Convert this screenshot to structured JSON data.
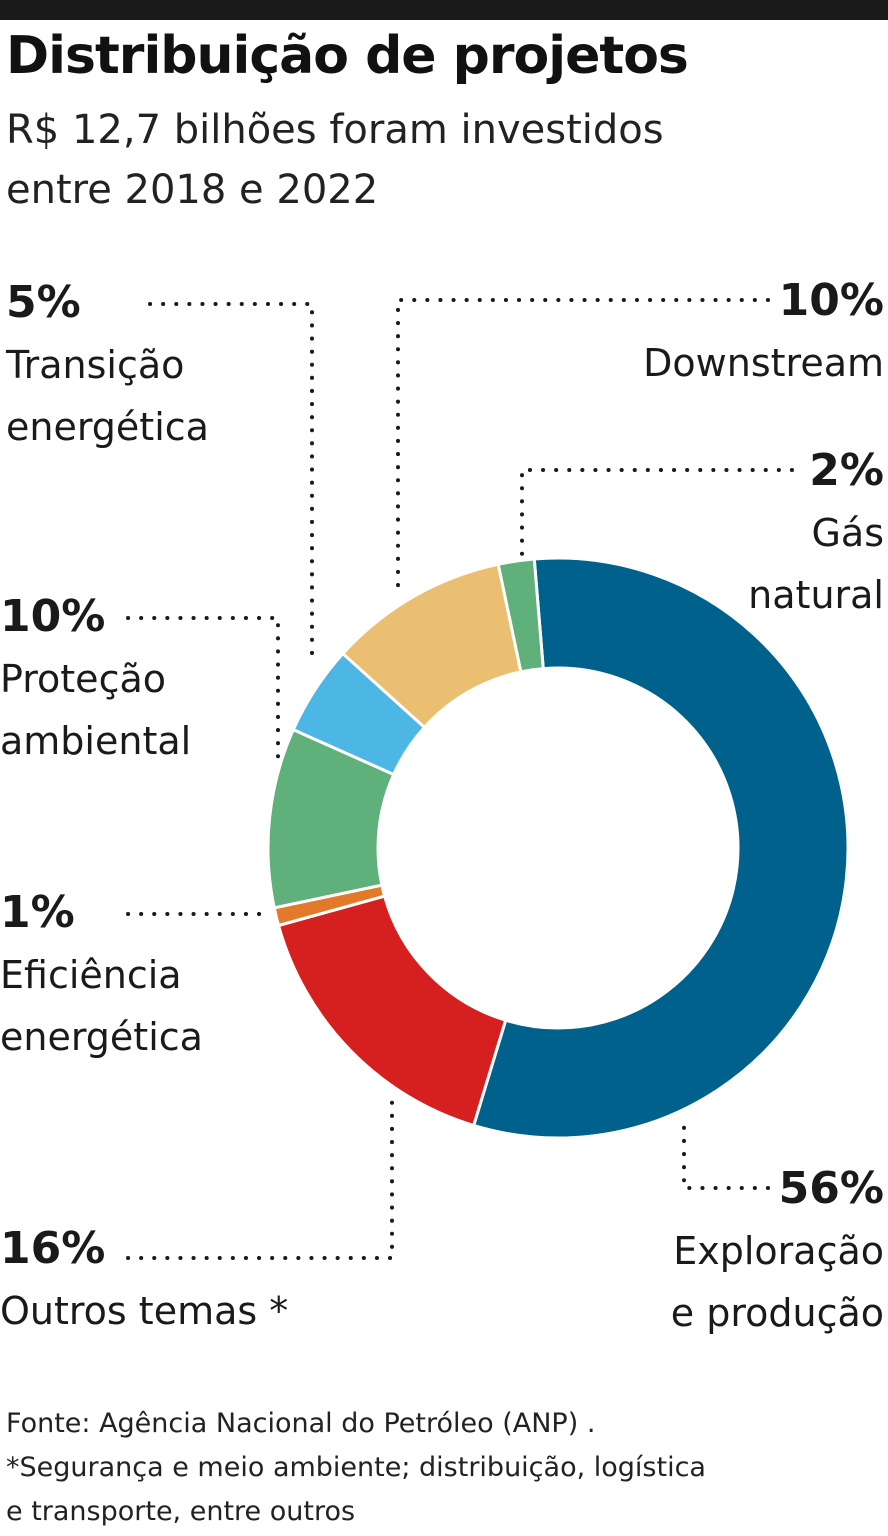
{
  "header": {
    "title": "Distribuição de projetos",
    "subtitle": "R$ 12,7 bilhões foram investidos entre 2018 e 2022"
  },
  "chart_data": {
    "type": "pie",
    "donut": true,
    "title": "Distribuição de projetos",
    "subtitle": "R$ 12,7 bilhões foram investidos entre 2018 e 2022",
    "unit": "%",
    "slices": [
      {
        "key": "exploracao",
        "label": "Exploração e produção",
        "label_lines": [
          "Exploração",
          "e produção"
        ],
        "value": 56,
        "value_label": "56%",
        "color": "#00628c"
      },
      {
        "key": "outros",
        "label": "Outros temas *",
        "label_lines": [
          "Outros temas *"
        ],
        "value": 16,
        "value_label": "16%",
        "color": "#d61f1f"
      },
      {
        "key": "eficiencia",
        "label": "Eficiência energética",
        "label_lines": [
          "Eficiência",
          "energética"
        ],
        "value": 1,
        "value_label": "1%",
        "color": "#e27a2a"
      },
      {
        "key": "protecao",
        "label": "Proteção ambiental",
        "label_lines": [
          "Proteção",
          "ambiental"
        ],
        "value": 10,
        "value_label": "10%",
        "color": "#5fb07a"
      },
      {
        "key": "transicao",
        "label": "Transição energética",
        "label_lines": [
          "Transição",
          "energética"
        ],
        "value": 5,
        "value_label": "5%",
        "color": "#4cb6e4"
      },
      {
        "key": "downstream",
        "label": "Downstream",
        "label_lines": [
          "Downstream"
        ],
        "value": 10,
        "value_label": "10%",
        "color": "#ebbf72"
      },
      {
        "key": "gas",
        "label": "Gás natural",
        "label_lines": [
          "Gás",
          "natural"
        ],
        "value": 2,
        "value_label": "2%",
        "color": "#5fb07a"
      }
    ]
  },
  "footer": {
    "source": "Fonte: Agência Nacional do Petróleo (ANP) .",
    "note_line1": "*Segurança e meio ambiente; distribuição, logística",
    "note_line2": "e transporte, entre outros"
  }
}
